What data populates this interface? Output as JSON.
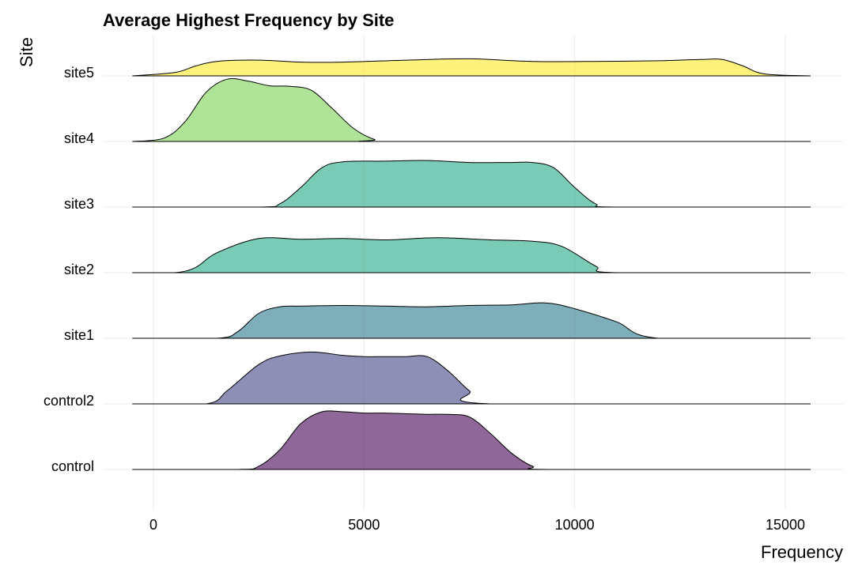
{
  "chart_data": {
    "type": "area",
    "subtype": "ridgeline",
    "title": "Average Highest Frequency by Site",
    "xlabel": "Frequency",
    "ylabel": "Site",
    "xlim": [
      -1300,
      16500
    ],
    "xticks": [
      0,
      5000,
      10000,
      15000
    ],
    "xtick_labels": [
      "0",
      "5000",
      "10000",
      "15000"
    ],
    "grid": true,
    "legend": "none",
    "categories": [
      "control",
      "control2",
      "site1",
      "site2",
      "site3",
      "site4",
      "site5"
    ],
    "series": [
      {
        "name": "control",
        "color": "#440154",
        "x": [
          -500,
          2000,
          2500,
          3000,
          3500,
          4000,
          4500,
          5000,
          5500,
          6000,
          6500,
          7000,
          7500,
          8000,
          8500,
          9000,
          9500,
          15600
        ],
        "density": [
          0,
          0,
          0.05,
          0.3,
          0.7,
          0.88,
          0.88,
          0.86,
          0.86,
          0.85,
          0.84,
          0.84,
          0.8,
          0.55,
          0.25,
          0.05,
          0,
          0
        ]
      },
      {
        "name": "control2",
        "color": "#414487",
        "x": [
          -500,
          1250,
          1750,
          2500,
          3000,
          3750,
          4500,
          5000,
          5500,
          6000,
          6500,
          7000,
          7500,
          8000,
          15600
        ],
        "density": [
          0,
          0,
          0.2,
          0.6,
          0.73,
          0.79,
          0.74,
          0.72,
          0.72,
          0.72,
          0.72,
          0.5,
          0.2,
          0,
          0
        ]
      },
      {
        "name": "site1",
        "color": "#2A788E",
        "x": [
          -500,
          1500,
          2000,
          2500,
          3000,
          3500,
          4500,
          5500,
          6500,
          7500,
          8500,
          9300,
          10000,
          11000,
          12000,
          15600
        ],
        "density": [
          0,
          0,
          0.1,
          0.38,
          0.48,
          0.49,
          0.5,
          0.49,
          0.48,
          0.5,
          0.51,
          0.54,
          0.45,
          0.25,
          0,
          0
        ]
      },
      {
        "name": "site2",
        "color": "#22A884",
        "x": [
          -500,
          500,
          1000,
          1500,
          2500,
          3500,
          4500,
          5500,
          6500,
          7000,
          8000,
          9000,
          9700,
          10500,
          11000,
          15600
        ],
        "density": [
          0,
          0,
          0.08,
          0.3,
          0.52,
          0.51,
          0.52,
          0.5,
          0.53,
          0.53,
          0.5,
          0.48,
          0.4,
          0.1,
          0,
          0
        ]
      },
      {
        "name": "site3",
        "color": "#22A884",
        "x": [
          -500,
          2500,
          3000,
          3500,
          4000,
          4500,
          5500,
          6500,
          7500,
          8500,
          9000,
          9500,
          10000,
          10500,
          11000,
          15600
        ],
        "density": [
          0,
          0,
          0.05,
          0.3,
          0.6,
          0.69,
          0.7,
          0.71,
          0.68,
          0.68,
          0.68,
          0.6,
          0.3,
          0.05,
          0,
          0
        ]
      },
      {
        "name": "site4",
        "color": "#7AD151",
        "x": [
          -500,
          250,
          750,
          1250,
          1750,
          2250,
          2750,
          3250,
          3750,
          4250,
          4750,
          5250,
          5750,
          15600
        ],
        "density": [
          0,
          0.05,
          0.3,
          0.75,
          0.95,
          0.92,
          0.85,
          0.84,
          0.78,
          0.5,
          0.2,
          0.03,
          0,
          0
        ]
      },
      {
        "name": "site5",
        "color": "#FDE725",
        "x": [
          -500,
          500,
          1000,
          1500,
          2500,
          3500,
          4500,
          6000,
          7500,
          9000,
          10500,
          12000,
          13000,
          13500,
          14000,
          14500,
          15600
        ],
        "density": [
          0,
          0.05,
          0.15,
          0.22,
          0.24,
          0.21,
          0.21,
          0.24,
          0.26,
          0.22,
          0.22,
          0.23,
          0.25,
          0.25,
          0.15,
          0.03,
          0
        ]
      }
    ]
  }
}
